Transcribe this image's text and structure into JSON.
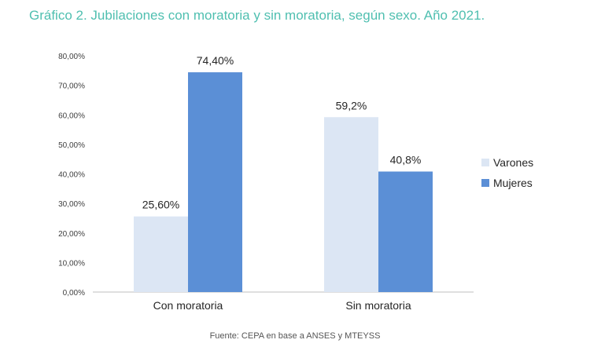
{
  "title": "Gráfico 2. Jubilaciones con moratoria y sin moratoria, según sexo. Año 2021.",
  "source": "Fuente: CEPA en base a ANSES y MTEYSS",
  "colors": {
    "title": "#4fbfb0",
    "varones": "#dce6f4",
    "mujeres": "#5b8fd6",
    "axis": "#bfbfbf"
  },
  "chart_data": {
    "type": "bar",
    "categories": [
      "Con moratoria",
      "Sin moratoria"
    ],
    "series": [
      {
        "name": "Varones",
        "values": [
          25.6,
          59.2
        ],
        "labels": [
          "25,60%",
          "59,2%"
        ],
        "color": "#dce6f4"
      },
      {
        "name": "Mujeres",
        "values": [
          74.4,
          40.8
        ],
        "labels": [
          "74,40%",
          "40,8%"
        ],
        "color": "#5b8fd6"
      }
    ],
    "ylim": [
      0,
      80
    ],
    "yticks": [
      0,
      10,
      20,
      30,
      40,
      50,
      60,
      70,
      80
    ],
    "ytick_labels": [
      "0,00%",
      "10,00%",
      "20,00%",
      "30,00%",
      "40,00%",
      "50,00%",
      "60,00%",
      "70,00%",
      "80,00%"
    ],
    "grid": false,
    "legend_position": "right"
  }
}
